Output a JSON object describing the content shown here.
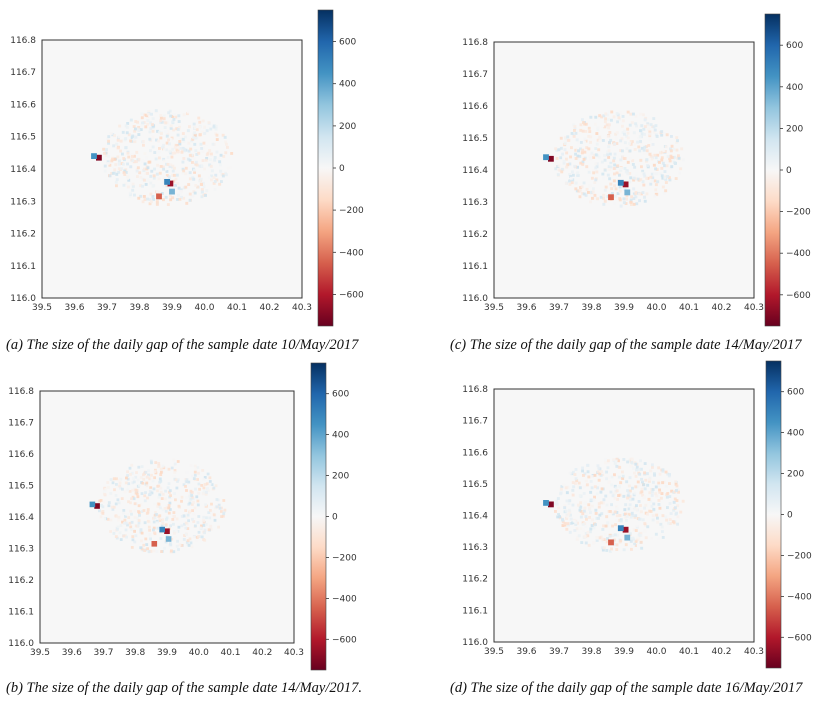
{
  "chart_data": [
    {
      "type": "heatmap",
      "caption": "(a) The size of the daily gap of the sample date 10/May/2017",
      "x_ticks": [
        "39.5",
        "39.6",
        "39.7",
        "39.8",
        "39.9",
        "40.0",
        "40.1",
        "40.2",
        "40.3"
      ],
      "y_ticks": [
        "116.8",
        "116.7",
        "116.6",
        "116.5",
        "116.4",
        "116.3",
        "116.2",
        "116.1",
        "116.0"
      ],
      "xlim": [
        39.5,
        40.3
      ],
      "ylim": [
        116.0,
        116.8
      ],
      "colorbar": {
        "ticks": [
          "600",
          "400",
          "200",
          "0",
          "−200",
          "−400",
          "−600"
        ],
        "range": [
          -750,
          750
        ],
        "colormap": "RdBu"
      },
      "hotspots": [
        {
          "x": 39.675,
          "y": 116.435,
          "value": -700
        },
        {
          "x": 39.66,
          "y": 116.44,
          "value": 450
        },
        {
          "x": 39.895,
          "y": 116.355,
          "value": -650
        },
        {
          "x": 39.885,
          "y": 116.36,
          "value": 500
        },
        {
          "x": 39.86,
          "y": 116.315,
          "value": -450
        },
        {
          "x": 39.9,
          "y": 116.33,
          "value": 350
        }
      ]
    },
    {
      "type": "heatmap",
      "caption": "(c) The size of the daily gap of the sample date 14/May/2017",
      "x_ticks": [
        "39.5",
        "39.6",
        "39.7",
        "39.8",
        "39.9",
        "40.0",
        "40.1",
        "40.2",
        "40.3"
      ],
      "y_ticks": [
        "116.8",
        "116.7",
        "116.6",
        "116.5",
        "116.4",
        "116.3",
        "116.2",
        "116.1",
        "116.0"
      ],
      "xlim": [
        39.5,
        40.3
      ],
      "ylim": [
        116.0,
        116.8
      ],
      "colorbar": {
        "ticks": [
          "600",
          "400",
          "200",
          "0",
          "−200",
          "−400",
          "−600"
        ],
        "range": [
          -750,
          750
        ],
        "colormap": "RdBu"
      },
      "hotspots": [
        {
          "x": 39.675,
          "y": 116.435,
          "value": -700
        },
        {
          "x": 39.66,
          "y": 116.44,
          "value": 450
        },
        {
          "x": 39.905,
          "y": 116.355,
          "value": -650
        },
        {
          "x": 39.89,
          "y": 116.36,
          "value": 500
        },
        {
          "x": 39.86,
          "y": 116.315,
          "value": -450
        },
        {
          "x": 39.91,
          "y": 116.33,
          "value": 350
        }
      ]
    },
    {
      "type": "heatmap",
      "caption": "(b) The size of the daily gap of the sample date 14/May/2017.",
      "x_ticks": [
        "39.5",
        "39.6",
        "39.7",
        "39.8",
        "39.9",
        "40.0",
        "40.1",
        "40.2",
        "40.3"
      ],
      "y_ticks": [
        "116.8",
        "116.7",
        "116.6",
        "116.5",
        "116.4",
        "116.3",
        "116.2",
        "116.1",
        "116.0"
      ],
      "xlim": [
        39.5,
        40.3
      ],
      "ylim": [
        116.0,
        116.8
      ],
      "colorbar": {
        "ticks": [
          "600",
          "400",
          "200",
          "0",
          "−200",
          "−400",
          "−600"
        ],
        "range": [
          -750,
          750
        ],
        "colormap": "RdBu"
      },
      "hotspots": [
        {
          "x": 39.68,
          "y": 116.435,
          "value": -700
        },
        {
          "x": 39.665,
          "y": 116.44,
          "value": 450
        },
        {
          "x": 39.9,
          "y": 116.355,
          "value": -650
        },
        {
          "x": 39.885,
          "y": 116.36,
          "value": 500
        },
        {
          "x": 39.86,
          "y": 116.315,
          "value": -450
        },
        {
          "x": 39.905,
          "y": 116.33,
          "value": 350
        }
      ]
    },
    {
      "type": "heatmap",
      "caption": "(d) The size of the daily gap of the sample date 16/May/2017",
      "x_ticks": [
        "39.5",
        "39.6",
        "39.7",
        "39.8",
        "39.9",
        "40.0",
        "40.1",
        "40.2",
        "40.3"
      ],
      "y_ticks": [
        "116.8",
        "116.7",
        "116.6",
        "116.5",
        "116.4",
        "116.3",
        "116.2",
        "116.1",
        "116.0"
      ],
      "xlim": [
        39.5,
        40.3
      ],
      "ylim": [
        116.0,
        116.8
      ],
      "colorbar": {
        "ticks": [
          "600",
          "400",
          "200",
          "0",
          "−200",
          "−400",
          "−600"
        ],
        "range": [
          -750,
          750
        ],
        "colormap": "RdBu"
      },
      "hotspots": [
        {
          "x": 39.675,
          "y": 116.435,
          "value": -700
        },
        {
          "x": 39.66,
          "y": 116.44,
          "value": 450
        },
        {
          "x": 39.905,
          "y": 116.355,
          "value": -650
        },
        {
          "x": 39.89,
          "y": 116.36,
          "value": 500
        },
        {
          "x": 39.86,
          "y": 116.315,
          "value": -450
        },
        {
          "x": 39.91,
          "y": 116.33,
          "value": 350
        }
      ]
    }
  ]
}
